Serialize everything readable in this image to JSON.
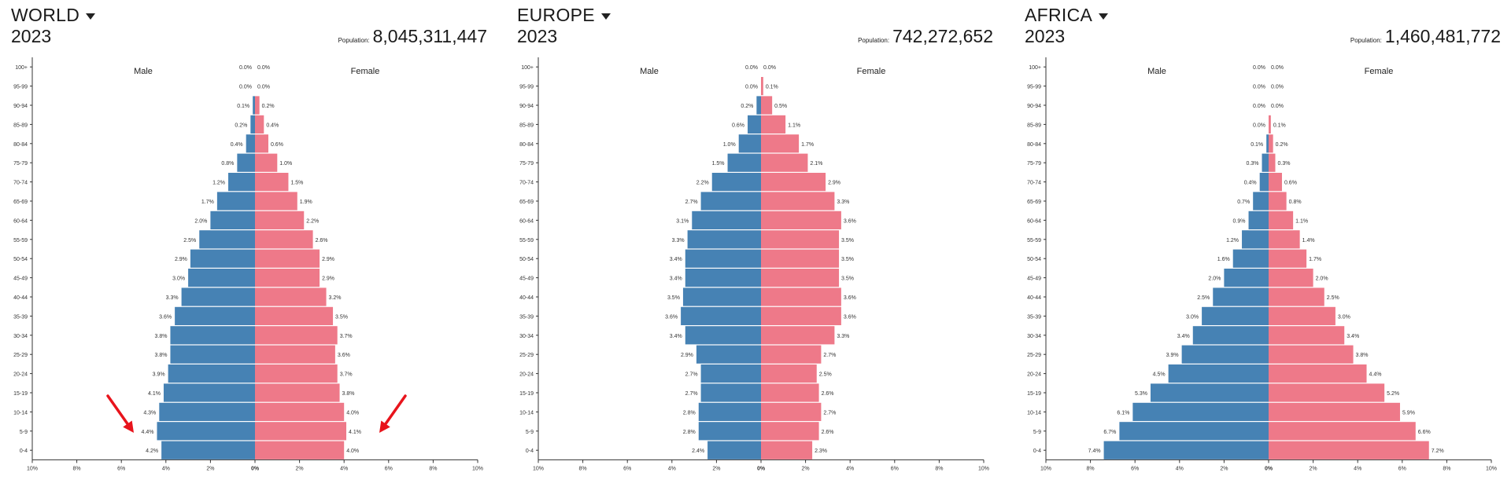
{
  "colors": {
    "male": "#4682b4",
    "female": "#ee7989",
    "axis": "#333333",
    "arrow": "#e8141c"
  },
  "icons": {
    "region_dropdown": "caret-down-icon",
    "annotation": "red-arrow-icon"
  },
  "x_ticks": [
    "10%",
    "8%",
    "6%",
    "4%",
    "2%",
    "0%",
    "2%",
    "4%",
    "6%",
    "8%",
    "10%"
  ],
  "age_groups": [
    "100+",
    "95-99",
    "90-94",
    "85-89",
    "80-84",
    "75-79",
    "70-74",
    "65-69",
    "60-64",
    "55-59",
    "50-54",
    "45-49",
    "40-44",
    "35-39",
    "30-34",
    "25-29",
    "20-24",
    "15-19",
    "10-14",
    "5-9",
    "0-4"
  ],
  "panels": [
    {
      "region": "WORLD",
      "year": "2023",
      "population_label": "Population:",
      "population": "8,045,311,447"
    },
    {
      "region": "EUROPE",
      "year": "2023",
      "population_label": "Population:",
      "population": "742,272,652"
    },
    {
      "region": "AFRICA",
      "year": "2023",
      "population_label": "Population:",
      "population": "1,460,481,772"
    }
  ],
  "chart_data": [
    {
      "type": "bar",
      "orientation": "horizontal-diverging",
      "xlim": [
        -10,
        10
      ],
      "categories": [
        "100+",
        "95-99",
        "90-94",
        "85-89",
        "80-84",
        "75-79",
        "70-74",
        "65-69",
        "60-64",
        "55-59",
        "50-54",
        "45-49",
        "40-44",
        "35-39",
        "30-34",
        "25-29",
        "20-24",
        "15-19",
        "10-14",
        "5-9",
        "0-4"
      ],
      "series": [
        {
          "name": "Male",
          "values": [
            0.0,
            0.0,
            0.1,
            0.2,
            0.4,
            0.8,
            1.2,
            1.7,
            2.0,
            2.5,
            2.9,
            3.0,
            3.3,
            3.6,
            3.8,
            3.8,
            3.9,
            4.1,
            4.3,
            4.4,
            4.2
          ],
          "labels": [
            "0.0%",
            "0.0%",
            "0.1%",
            "0.2%",
            "0.4%",
            "0.8%",
            "1.2%",
            "1.7%",
            "2.0%",
            "2.5%",
            "2.9%",
            "3.0%",
            "3.3%",
            "3.6%",
            "3.8%",
            "3.8%",
            "3.9%",
            "4.1%",
            "4.3%",
            "4.4%",
            "4.2%"
          ]
        },
        {
          "name": "Female",
          "values": [
            0.0,
            0.0,
            0.2,
            0.4,
            0.6,
            1.0,
            1.5,
            1.9,
            2.2,
            2.6,
            2.9,
            2.9,
            3.2,
            3.5,
            3.7,
            3.6,
            3.7,
            3.8,
            4.0,
            4.1,
            4.0
          ],
          "labels": [
            "0.0%",
            "0.0%",
            "0.2%",
            "0.4%",
            "0.6%",
            "1.0%",
            "1.5%",
            "1.9%",
            "2.2%",
            "2.6%",
            "2.9%",
            "2.9%",
            "3.2%",
            "3.5%",
            "3.7%",
            "3.6%",
            "3.7%",
            "3.8%",
            "4.0%",
            "4.1%",
            "4.0%"
          ]
        }
      ],
      "annotations": [
        "red-arrow-left",
        "red-arrow-right"
      ]
    },
    {
      "type": "bar",
      "orientation": "horizontal-diverging",
      "xlim": [
        -10,
        10
      ],
      "categories": [
        "100+",
        "95-99",
        "90-94",
        "85-89",
        "80-84",
        "75-79",
        "70-74",
        "65-69",
        "60-64",
        "55-59",
        "50-54",
        "45-49",
        "40-44",
        "35-39",
        "30-34",
        "25-29",
        "20-24",
        "15-19",
        "10-14",
        "5-9",
        "0-4"
      ],
      "series": [
        {
          "name": "Male",
          "values": [
            0.0,
            0.0,
            0.2,
            0.6,
            1.0,
            1.5,
            2.2,
            2.7,
            3.1,
            3.3,
            3.4,
            3.4,
            3.5,
            3.6,
            3.4,
            2.9,
            2.7,
            2.7,
            2.8,
            2.8,
            2.4
          ],
          "labels": [
            "0.0%",
            "0.0%",
            "0.2%",
            "0.6%",
            "1.0%",
            "1.5%",
            "2.2%",
            "2.7%",
            "3.1%",
            "3.3%",
            "3.4%",
            "3.4%",
            "3.5%",
            "3.6%",
            "3.4%",
            "2.9%",
            "2.7%",
            "2.7%",
            "2.8%",
            "2.8%",
            "2.4%"
          ]
        },
        {
          "name": "Female",
          "values": [
            0.0,
            0.1,
            0.5,
            1.1,
            1.7,
            2.1,
            2.9,
            3.3,
            3.6,
            3.5,
            3.5,
            3.5,
            3.6,
            3.6,
            3.3,
            2.7,
            2.5,
            2.6,
            2.7,
            2.6,
            2.3
          ],
          "labels": [
            "0.0%",
            "0.1%",
            "0.5%",
            "1.1%",
            "1.7%",
            "2.1%",
            "2.9%",
            "3.3%",
            "3.6%",
            "3.5%",
            "3.5%",
            "3.5%",
            "3.6%",
            "3.6%",
            "3.3%",
            "2.7%",
            "2.5%",
            "2.6%",
            "2.7%",
            "2.6%",
            "2.3%"
          ]
        }
      ],
      "annotations": []
    },
    {
      "type": "bar",
      "orientation": "horizontal-diverging",
      "xlim": [
        -10,
        10
      ],
      "categories": [
        "100+",
        "95-99",
        "90-94",
        "85-89",
        "80-84",
        "75-79",
        "70-74",
        "65-69",
        "60-64",
        "55-59",
        "50-54",
        "45-49",
        "40-44",
        "35-39",
        "30-34",
        "25-29",
        "20-24",
        "15-19",
        "10-14",
        "5-9",
        "0-4"
      ],
      "series": [
        {
          "name": "Male",
          "values": [
            0.0,
            0.0,
            0.0,
            0.0,
            0.1,
            0.3,
            0.4,
            0.7,
            0.9,
            1.2,
            1.6,
            2.0,
            2.5,
            3.0,
            3.4,
            3.9,
            4.5,
            5.3,
            6.1,
            6.7,
            7.4
          ],
          "labels": [
            "0.0%",
            "0.0%",
            "0.0%",
            "0.0%",
            "0.1%",
            "0.3%",
            "0.4%",
            "0.7%",
            "0.9%",
            "1.2%",
            "1.6%",
            "2.0%",
            "2.5%",
            "3.0%",
            "3.4%",
            "3.9%",
            "4.5%",
            "5.3%",
            "6.1%",
            "6.7%",
            "7.4%"
          ]
        },
        {
          "name": "Female",
          "values": [
            0.0,
            0.0,
            0.0,
            0.1,
            0.2,
            0.3,
            0.6,
            0.8,
            1.1,
            1.4,
            1.7,
            2.0,
            2.5,
            3.0,
            3.4,
            3.8,
            4.4,
            5.2,
            5.9,
            6.6,
            7.2
          ],
          "labels": [
            "0.0%",
            "0.0%",
            "0.0%",
            "0.1%",
            "0.2%",
            "0.3%",
            "0.6%",
            "0.8%",
            "1.1%",
            "1.4%",
            "1.7%",
            "2.0%",
            "2.5%",
            "3.0%",
            "3.4%",
            "3.8%",
            "4.4%",
            "5.2%",
            "5.9%",
            "6.6%",
            "7.2%"
          ]
        }
      ],
      "annotations": []
    }
  ]
}
